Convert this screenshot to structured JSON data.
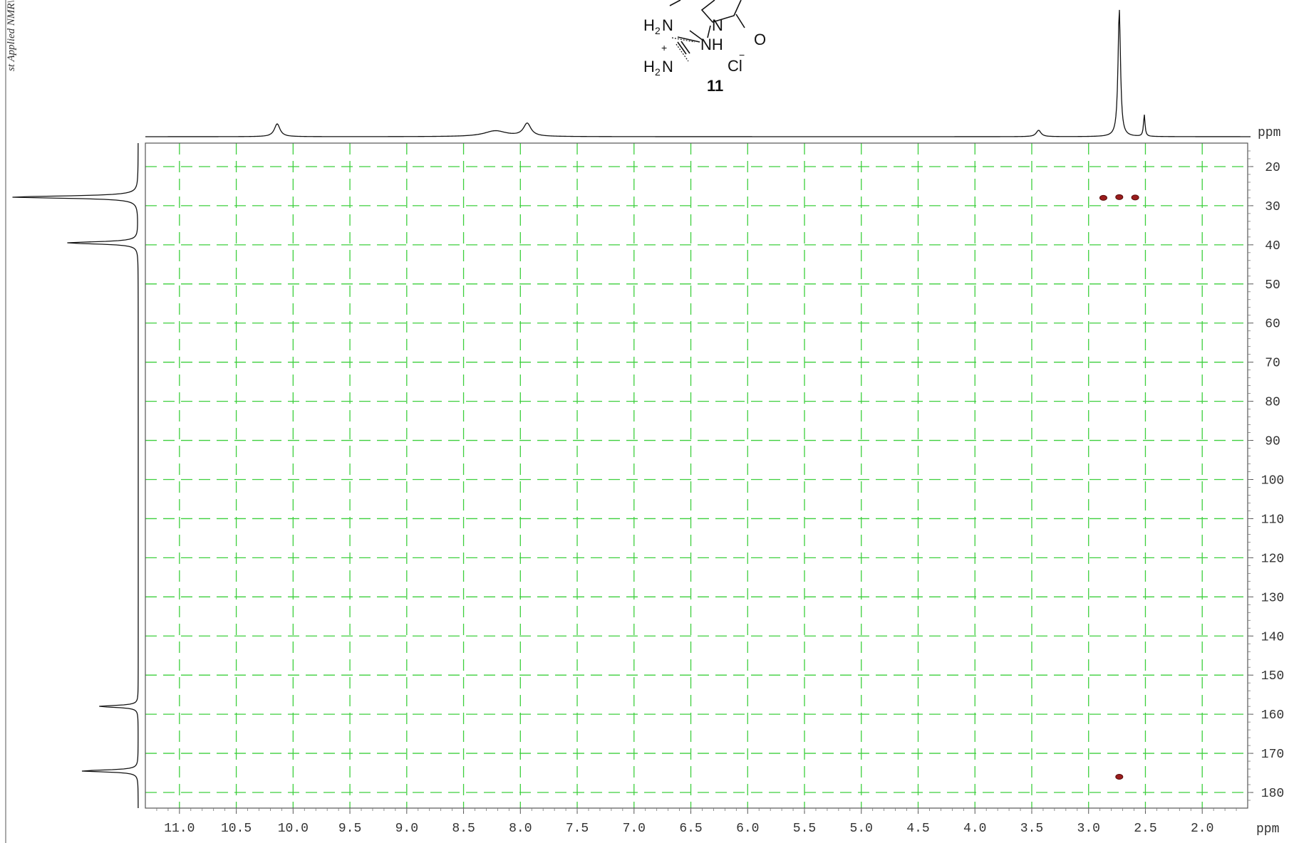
{
  "side_text": "st Applied NMR\\",
  "structure": {
    "compound_number": "11",
    "atoms": [
      "H",
      "2",
      "N",
      "H",
      "2",
      "N",
      "N",
      "NH",
      "O",
      "Cl",
      "+",
      "−"
    ]
  },
  "colors": {
    "grid": "#3dcf3d",
    "contour": "#9a1c1c",
    "trace": "#111111",
    "frame": "#555555"
  },
  "chart_data": {
    "type": "scatter",
    "title": "",
    "xlabel": "ppm",
    "ylabel": "ppm",
    "xlim": [
      11.3,
      1.6
    ],
    "ylim": [
      14,
      184
    ],
    "x_ticks": [
      11.0,
      10.5,
      10.0,
      9.5,
      9.0,
      8.5,
      8.0,
      7.5,
      7.0,
      6.5,
      6.0,
      5.5,
      5.0,
      4.5,
      4.0,
      3.5,
      3.0,
      2.5,
      2.0
    ],
    "x_tick_labels": [
      "11.0",
      "10.5",
      "10.0",
      "9.5",
      "9.0",
      "8.5",
      "8.0",
      "7.5",
      "7.0",
      "6.5",
      "6.0",
      "5.5",
      "5.0",
      "4.5",
      "4.0",
      "3.5",
      "3.0",
      "2.5",
      "2.0"
    ],
    "y_ticks": [
      20,
      30,
      40,
      50,
      60,
      70,
      80,
      90,
      100,
      110,
      120,
      130,
      140,
      150,
      160,
      170,
      180
    ],
    "y_tick_labels": [
      "20",
      "30",
      "40",
      "50",
      "60",
      "70",
      "80",
      "90",
      "100",
      "110",
      "120",
      "130",
      "140",
      "150",
      "160",
      "170",
      "180"
    ],
    "grid": true,
    "cross_peaks": [
      {
        "x": 2.87,
        "y": 28.0
      },
      {
        "x": 2.73,
        "y": 27.8
      },
      {
        "x": 2.59,
        "y": 27.9
      },
      {
        "x": 2.73,
        "y": 176.0
      }
    ],
    "top_projection": {
      "peaks": [
        {
          "x": 10.14,
          "h": 0.1,
          "w": 0.03
        },
        {
          "x": 8.22,
          "h": 0.045,
          "w": 0.12
        },
        {
          "x": 7.94,
          "h": 0.1,
          "w": 0.04
        },
        {
          "x": 3.44,
          "h": 0.05,
          "w": 0.025
        },
        {
          "x": 2.73,
          "h": 1.0,
          "w": 0.013
        },
        {
          "x": 2.51,
          "h": 0.17,
          "w": 0.008
        }
      ]
    },
    "left_projection": {
      "peaks": [
        {
          "y": 27.8,
          "h": 1.0,
          "w": 0.35
        },
        {
          "y": 39.5,
          "h": 0.56,
          "w": 0.35
        },
        {
          "y": 158.0,
          "h": 0.31,
          "w": 0.3
        },
        {
          "y": 174.5,
          "h": 0.45,
          "w": 0.3
        }
      ]
    }
  }
}
